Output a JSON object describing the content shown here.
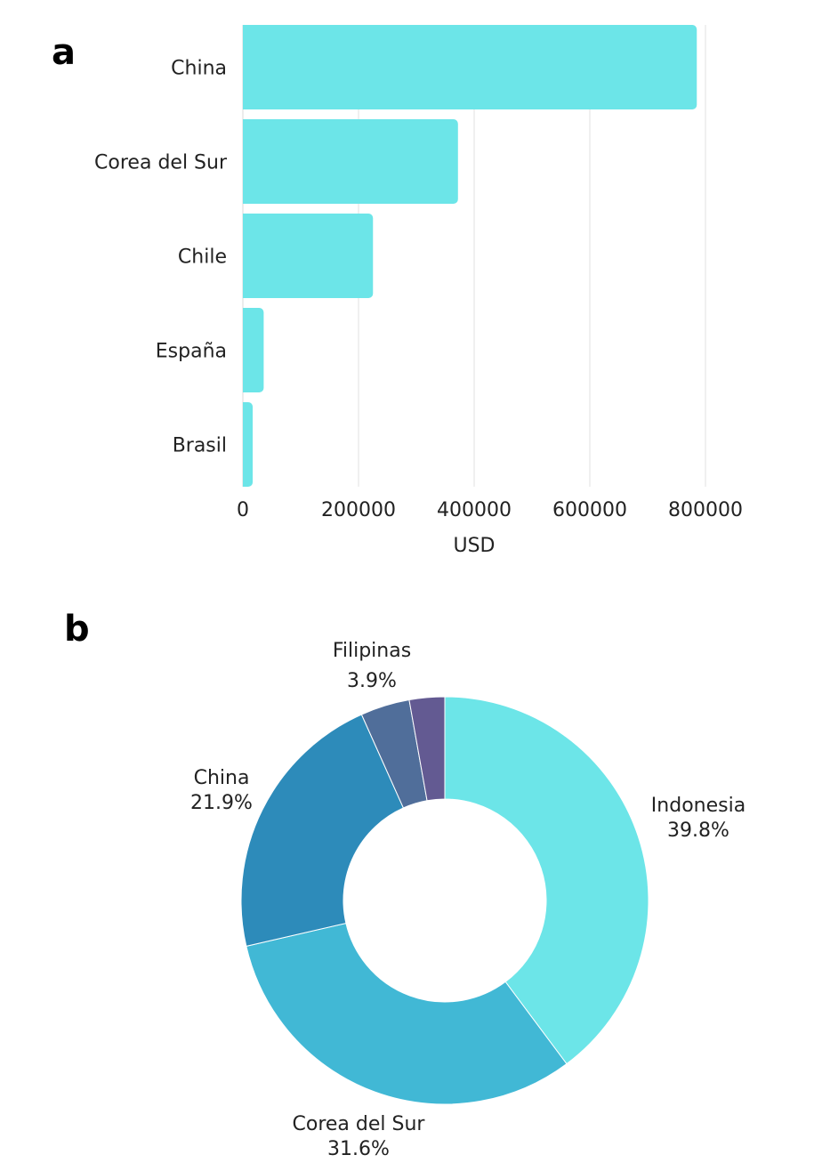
{
  "panels": {
    "a": "a",
    "b": "b"
  },
  "chart_data": [
    {
      "type": "bar",
      "orientation": "horizontal",
      "categories": [
        "China",
        "Corea del Sur",
        "Chile",
        "España",
        "Brasil"
      ],
      "values": [
        785000,
        372000,
        225000,
        36000,
        17000
      ],
      "xlabel": "USD",
      "ylabel": "",
      "xlim": [
        0,
        800000
      ],
      "xticks": [
        0,
        200000,
        400000,
        600000,
        800000
      ],
      "xtick_labels": [
        "0",
        "200000",
        "400000",
        "600000",
        "800000"
      ],
      "grid": "vertical",
      "color": "#6ce5e8"
    },
    {
      "type": "pie",
      "donut": true,
      "slices": [
        {
          "name": "Indonesia",
          "value": 39.8,
          "label": "39.8%",
          "color": "#6ce5e8"
        },
        {
          "name": "Corea del Sur",
          "value": 31.6,
          "label": "31.6%",
          "color": "#41b8d5"
        },
        {
          "name": "China",
          "value": 21.9,
          "label": "21.9%",
          "color": "#2d8bba"
        },
        {
          "name": "Filipinas",
          "value": 3.9,
          "label": "3.9%",
          "color": "#506e9a"
        },
        {
          "name": "",
          "value": 2.8,
          "label": "",
          "color": "#635a92"
        }
      ]
    }
  ]
}
